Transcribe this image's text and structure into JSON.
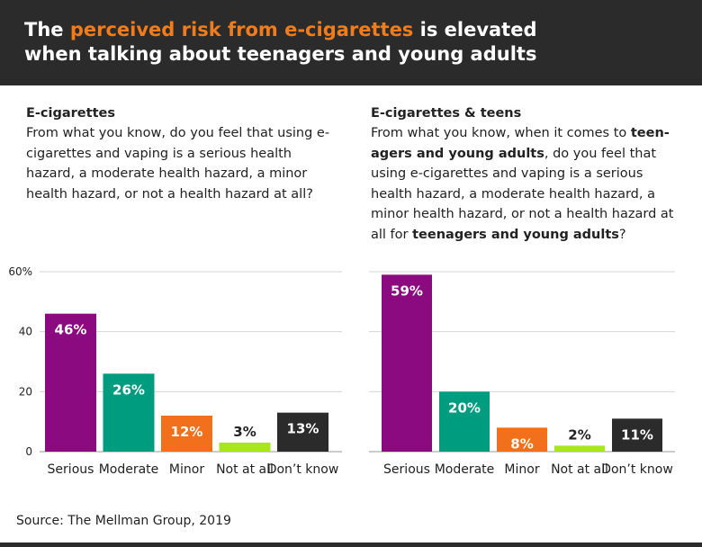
{
  "header": {
    "line1_pre": "The ",
    "line1_highlight": "perceived risk from e-cigarettes",
    "line1_post": " is elevated",
    "line2": "when talking about teenagers and young adults"
  },
  "left": {
    "title": "E-cigarettes",
    "question": "From what you know, do you feel that using e-cigarettes and vaping is a serious health hazard, a moderate health hazard, a minor health hazard, or not a health hazard at all?"
  },
  "right": {
    "title": "E-cigarettes & teens",
    "question_pre": "From what you know, when it comes to ",
    "question_bold1": "teen-agers and young adults",
    "question_mid": ", do you feel that using e-cigarettes and vaping is a serious health hazard, a moderate health hazard, a minor health hazard, or not a health hazard at all for ",
    "question_bold2": "teenagers and young adults",
    "question_post": "?"
  },
  "source": "Source: The Mellman Group, 2019",
  "colors": {
    "header_bg": "#2b2b2b",
    "highlight": "#f07c1b",
    "serious": "#8b0a80",
    "moderate": "#009c80",
    "minor": "#f26f1b",
    "not_at_all": "#a8e61e",
    "dont_know": "#2b2b2b"
  },
  "chart_data": [
    {
      "type": "bar",
      "title": "E-cigarettes",
      "categories": [
        "Serious",
        "Moderate",
        "Minor",
        "Not at all",
        "Don’t know"
      ],
      "values": [
        46,
        26,
        12,
        3,
        13
      ],
      "value_labels": [
        "46%",
        "26%",
        "12%",
        "3%",
        "13%"
      ],
      "bar_colors": [
        "#8b0a80",
        "#009c80",
        "#f26f1b",
        "#a8e61e",
        "#2b2b2b"
      ],
      "yticks": [
        0,
        20,
        40,
        60
      ],
      "ytick_labels": [
        "0",
        "20",
        "40",
        "60%"
      ],
      "ylim": [
        0,
        60
      ],
      "grid": true
    },
    {
      "type": "bar",
      "title": "E-cigarettes & teens",
      "categories": [
        "Serious",
        "Moderate",
        "Minor",
        "Not at all",
        "Don’t know"
      ],
      "values": [
        59,
        20,
        8,
        2,
        11
      ],
      "value_labels": [
        "59%",
        "20%",
        "8%",
        "2%",
        "11%"
      ],
      "bar_colors": [
        "#8b0a80",
        "#009c80",
        "#f26f1b",
        "#a8e61e",
        "#2b2b2b"
      ],
      "yticks": [
        0,
        20,
        40,
        60
      ],
      "ylim": [
        0,
        60
      ],
      "grid": true
    }
  ]
}
